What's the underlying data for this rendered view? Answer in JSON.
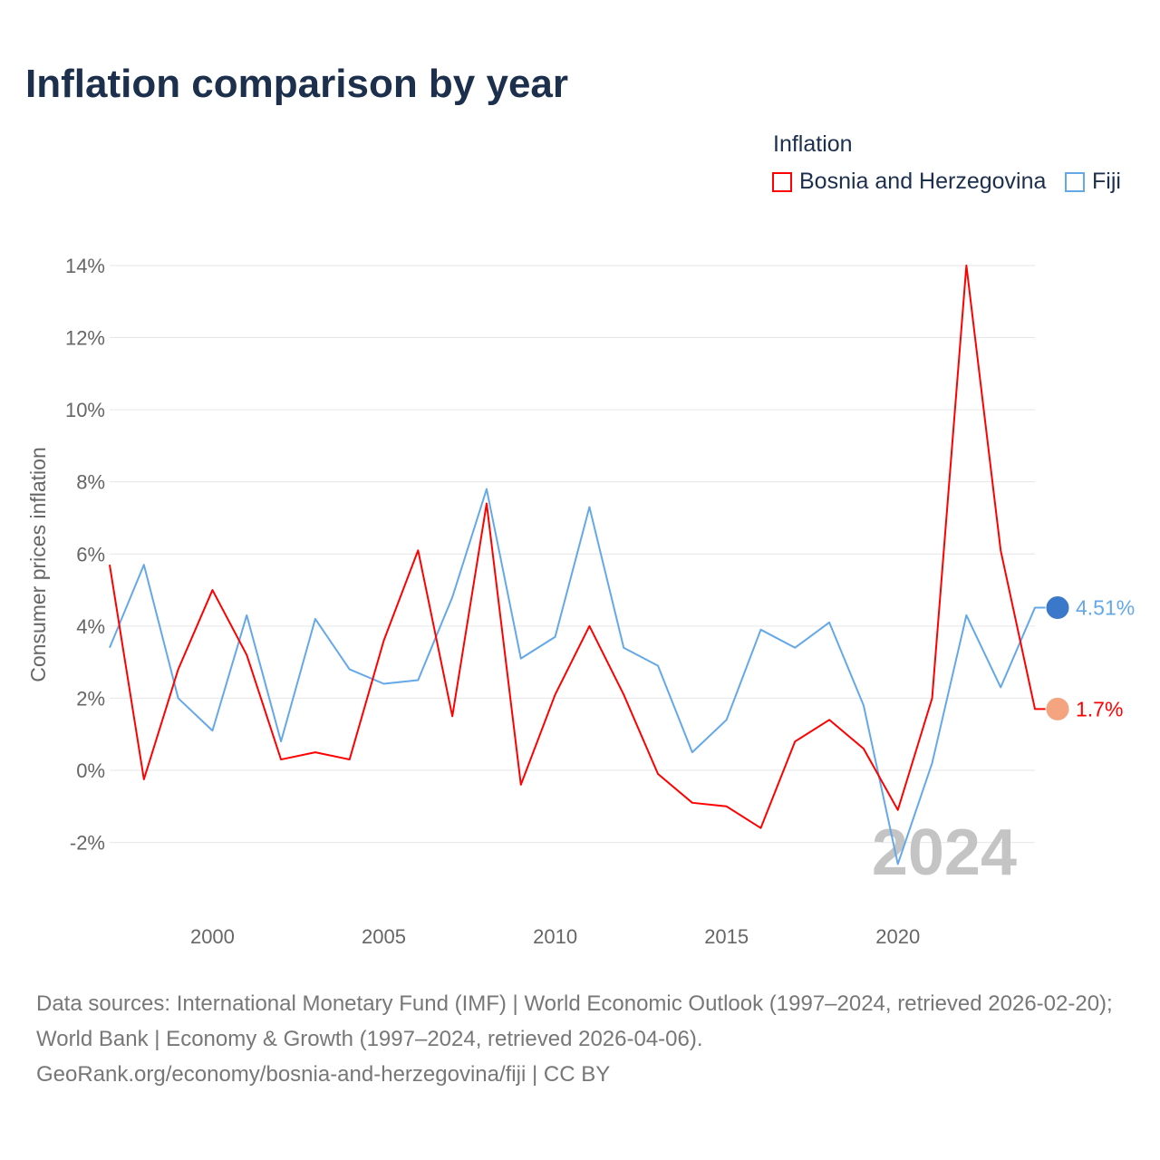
{
  "title": "Inflation comparison by year",
  "legend": {
    "title": "Inflation",
    "items": [
      {
        "label": "Bosnia and Herzegovina",
        "color": "#ff0000"
      },
      {
        "label": "Fiji",
        "color": "#64a8e8"
      }
    ]
  },
  "year_watermark": "2024",
  "sources": {
    "line1": "Data sources: International Monetary Fund (IMF) | World Economic Outlook (1997–2024, retrieved 2026-02-20); World Bank | Economy & Growth (1997–2024, retrieved 2026-04-06).",
    "line2": "GeoRank.org/economy/bosnia-and-herzegovina/fiji | CC BY"
  },
  "chart_data": {
    "type": "line",
    "title": "Inflation comparison by year",
    "xlabel": "",
    "ylabel": "Consumer prices inflation",
    "x": [
      1997,
      1998,
      1999,
      2000,
      2001,
      2002,
      2003,
      2004,
      2005,
      2006,
      2007,
      2008,
      2009,
      2010,
      2011,
      2012,
      2013,
      2014,
      2015,
      2016,
      2017,
      2018,
      2019,
      2020,
      2021,
      2022,
      2023,
      2024
    ],
    "xlim": [
      1997,
      2024
    ],
    "ylim": [
      -3,
      15
    ],
    "x_ticks": [
      2000,
      2005,
      2010,
      2015,
      2020
    ],
    "y_ticks": [
      -2,
      0,
      2,
      4,
      6,
      8,
      10,
      12,
      14
    ],
    "y_tick_labels": [
      "-2%",
      "0%",
      "2%",
      "4%",
      "6%",
      "8%",
      "10%",
      "12%",
      "14%"
    ],
    "grid": true,
    "legend_position": "top-right",
    "series": [
      {
        "name": "Bosnia and Herzegovina",
        "color": "#ff0000",
        "end_label": "1.7%",
        "values": [
          5.7,
          -0.25,
          2.8,
          5.0,
          3.2,
          0.3,
          0.5,
          0.3,
          3.6,
          6.1,
          1.5,
          7.4,
          -0.4,
          2.1,
          4.0,
          2.1,
          -0.1,
          -0.9,
          -1.0,
          -1.6,
          0.8,
          1.4,
          0.6,
          -1.1,
          2.0,
          14.0,
          6.1,
          1.7
        ]
      },
      {
        "name": "Fiji",
        "color": "#64a8e8",
        "end_label": "4.51%",
        "values": [
          3.4,
          5.7,
          2.0,
          1.1,
          4.3,
          0.8,
          4.2,
          2.8,
          2.4,
          2.5,
          4.8,
          7.8,
          3.1,
          3.7,
          7.3,
          3.4,
          2.9,
          0.5,
          1.4,
          3.9,
          3.4,
          4.1,
          1.8,
          -2.6,
          0.2,
          4.3,
          2.3,
          4.51
        ]
      }
    ]
  }
}
